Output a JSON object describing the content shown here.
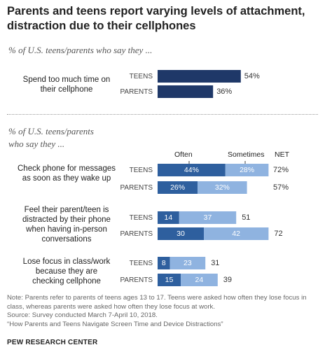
{
  "title": "Parents and teens report varying levels of attachment, distraction due to their cellphones",
  "subtitle_top": "% of U.S. teens/parents who say they ...",
  "subtitle_bottom_1": "% of U.S. teens/parents",
  "subtitle_bottom_2": "who say they ...",
  "legend": {
    "often": "Often",
    "sometimes": "Sometimes",
    "net": "NET"
  },
  "colors": {
    "dark": "#1f3868",
    "often": "#2e5f9e",
    "sometimes": "#8fb3e0"
  },
  "chart_data": [
    {
      "type": "bar",
      "title": "",
      "categories": [
        "TEENS",
        "PARENTS"
      ],
      "question": "Spend too much time on their cellphone",
      "question_lines": [
        "Spend too much time on",
        "their cellphone"
      ],
      "series": [
        {
          "values": [
            54,
            36
          ],
          "labels": [
            "54%",
            "36%"
          ]
        }
      ]
    },
    {
      "type": "bar",
      "stacked": true,
      "series_names": [
        "Often",
        "Sometimes",
        "NET"
      ],
      "items": [
        {
          "question": "Check phone for messages as soon as they wake up",
          "question_lines": [
            "Check phone for messages",
            "as soon as they wake up"
          ],
          "rows": [
            {
              "group": "TEENS",
              "often": 44,
              "sometimes": 28,
              "net": 72,
              "often_label": "44%",
              "sometimes_label": "28%",
              "net_label": "72%"
            },
            {
              "group": "PARENTS",
              "often": 26,
              "sometimes": 32,
              "net": 57,
              "often_label": "26%",
              "sometimes_label": "32%",
              "net_label": "57%"
            }
          ]
        },
        {
          "question": "Feel their parent/teen is distracted by their phone when having in-person conversations",
          "question_lines": [
            "Feel their parent/teen is",
            "distracted by their phone",
            "when having in-person",
            "conversations"
          ],
          "rows": [
            {
              "group": "TEENS",
              "often": 14,
              "sometimes": 37,
              "net": 51,
              "often_label": "14",
              "sometimes_label": "37",
              "net_label": "51"
            },
            {
              "group": "PARENTS",
              "often": 30,
              "sometimes": 42,
              "net": 72,
              "often_label": "30",
              "sometimes_label": "42",
              "net_label": "72"
            }
          ]
        },
        {
          "question": "Lose focus in class/work because they are checking cellphone",
          "question_lines": [
            "Lose focus in class/work",
            "because they are",
            "checking cellphone"
          ],
          "rows": [
            {
              "group": "TEENS",
              "often": 8,
              "sometimes": 23,
              "net": 31,
              "often_label": "8",
              "sometimes_label": "23",
              "net_label": "31"
            },
            {
              "group": "PARENTS",
              "often": 15,
              "sometimes": 24,
              "net": 39,
              "often_label": "15",
              "sometimes_label": "24",
              "net_label": "39"
            }
          ]
        }
      ]
    }
  ],
  "notes": [
    "Note: Parents refer to parents of teens ages 13 to 17. Teens were asked how often they lose focus in class, whereas parents were asked how often they lose focus at work.",
    "Source: Survey conducted March 7-April 10, 2018.",
    "“How Parents and Teens Navigate Screen Time and Device Distractions”"
  ],
  "source_label": "PEW RESEARCH CENTER"
}
